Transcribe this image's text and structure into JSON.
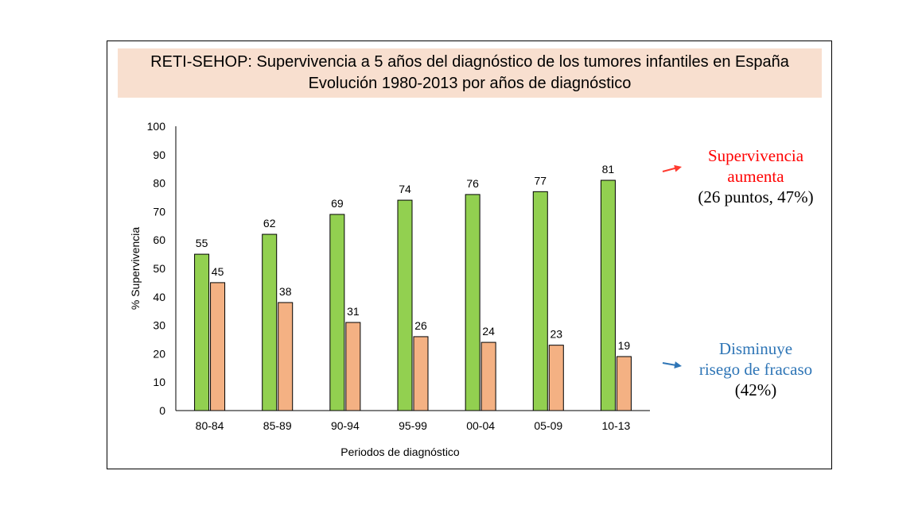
{
  "chart_data": {
    "type": "bar",
    "title": "RETI-SEHOP: Supervivencia a 5 años del diagnóstico de los tumores infantiles en España",
    "subtitle": "Evolución 1980-2013 por años de diagnóstico",
    "xlabel": "Periodos de diagnóstico",
    "ylabel": "% Supervivencia",
    "ylim": [
      0,
      100
    ],
    "yticks": [
      0,
      10,
      20,
      30,
      40,
      50,
      60,
      70,
      80,
      90,
      100
    ],
    "categories": [
      "80-84",
      "85-89",
      "90-94",
      "95-99",
      "00-04",
      "05-09",
      "10-13"
    ],
    "series": [
      {
        "values": [
          55,
          62,
          69,
          74,
          76,
          77,
          81
        ],
        "color": "#92d050"
      },
      {
        "values": [
          45,
          38,
          31,
          26,
          24,
          23,
          19
        ],
        "color": "#f4b183"
      }
    ],
    "grid": false,
    "legend": "none"
  },
  "annotations": {
    "up": {
      "line1": "Supervivencia",
      "line2": "aumenta",
      "line3": "(26 puntos, 47%)",
      "arrow_color": "#ff3b30",
      "text_color": "#ff0000"
    },
    "down": {
      "line1": "Disminuye",
      "line2": "risego de fracaso",
      "line3": "(42%)",
      "arrow_color": "#2e75b6",
      "text_color": "#2e75b6"
    }
  }
}
